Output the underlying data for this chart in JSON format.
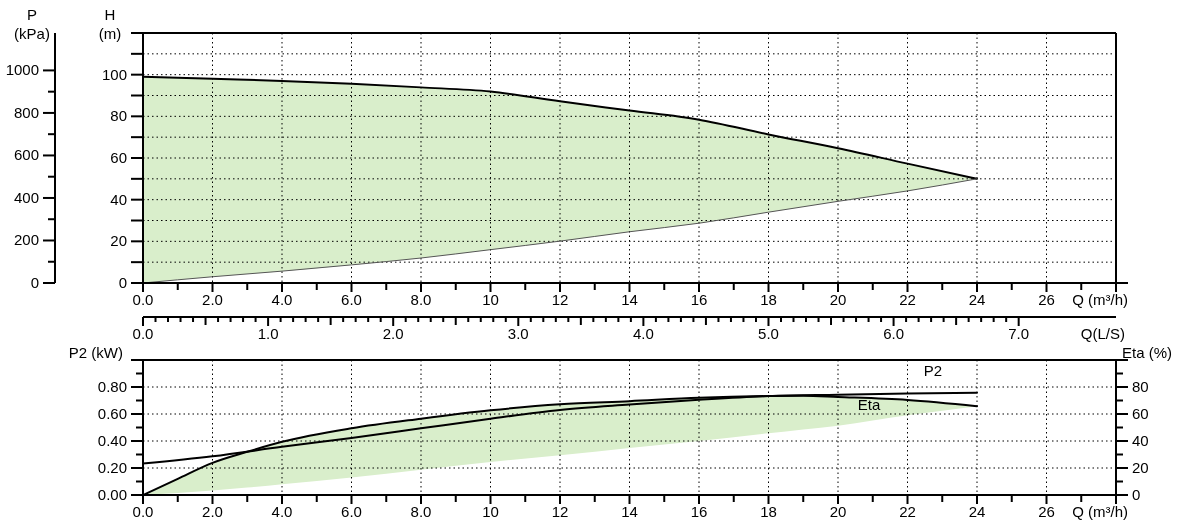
{
  "chart_data": [
    {
      "type": "line",
      "xlabel": "Q (m³/h)",
      "ylabel": "H (m)",
      "y2label": "P (kPa)",
      "x2label": "Q(L/S)",
      "grid": true,
      "xlim": [
        0,
        28
      ],
      "xticks": [
        {
          "value": 0,
          "label": "0.0"
        },
        {
          "value": 2,
          "label": "2.0"
        },
        {
          "value": 4,
          "label": "4.0"
        },
        {
          "value": 6,
          "label": "6.0"
        },
        {
          "value": 8,
          "label": "8.0"
        },
        10,
        12,
        14,
        16,
        18,
        20,
        22,
        24,
        26,
        {
          "value": 28,
          "label": null
        }
      ],
      "ylim": [
        0,
        120
      ],
      "yticks": [
        0,
        {
          "value": 10,
          "label": null
        },
        20,
        {
          "value": 30,
          "label": null
        },
        40,
        {
          "value": 50,
          "label": null
        },
        60,
        {
          "value": 70,
          "label": null
        },
        80,
        {
          "value": 90,
          "label": null
        },
        100,
        {
          "value": 110,
          "label": null
        },
        {
          "value": 120,
          "label": null
        }
      ],
      "y2lim": [
        0,
        1176
      ],
      "y2ticks": [
        0,
        200,
        400,
        600,
        800,
        1000
      ],
      "x2lim": [
        0,
        7.778
      ],
      "x2ticks": [
        {
          "value": 0,
          "label": "0.0"
        },
        {
          "value": 1,
          "label": "1.0"
        },
        {
          "value": 2,
          "label": "2.0"
        },
        {
          "value": 3,
          "label": "3.0"
        },
        {
          "value": 4,
          "label": "4.0"
        },
        {
          "value": 5,
          "label": "5.0"
        },
        {
          "value": 6,
          "label": "6.0"
        },
        {
          "value": 7,
          "label": "7.0"
        }
      ],
      "x": [
        0,
        2,
        4,
        6,
        8,
        10,
        12,
        14,
        16,
        18,
        20,
        22,
        24
      ],
      "series": [
        {
          "color": "#000000",
          "values": [
            99,
            98,
            97,
            95.6,
            93.9,
            91.9,
            87.2,
            82.8,
            78.4,
            71.3,
            64.7,
            57.3,
            50
          ],
          "lower": [
            0,
            3,
            5.7,
            8.7,
            12,
            16,
            20.1,
            24.6,
            28.7,
            34,
            39.2,
            44.2,
            50
          ],
          "upper": [
            99,
            98,
            97,
            95.6,
            93.9,
            91.9,
            87.2,
            82.8,
            78.4,
            71.3,
            64.7,
            57.3,
            50
          ]
        },
        {
          "color": "#555555",
          "values": [
            0,
            3,
            5.7,
            8.7,
            12,
            16,
            20.1,
            24.6,
            28.7,
            34,
            39.2,
            44.2,
            50
          ]
        }
      ]
    },
    {
      "type": "line",
      "xlabel": "Q (m³/h)",
      "ylabel": "P2 (kW)",
      "y2label": "Eta (%)",
      "grid": true,
      "xlim": [
        0,
        28
      ],
      "xticks": [
        {
          "value": 0,
          "label": "0.0"
        },
        {
          "value": 2,
          "label": "2.0"
        },
        {
          "value": 4,
          "label": "4.0"
        },
        {
          "value": 6,
          "label": "6.0"
        },
        {
          "value": 8,
          "label": "8.0"
        },
        10,
        12,
        14,
        16,
        18,
        20,
        22,
        24,
        26,
        {
          "value": 28,
          "label": null
        }
      ],
      "ylim": [
        0,
        1
      ],
      "yticks": [
        {
          "value": 0,
          "label": "0.00"
        },
        {
          "value": 0.2,
          "label": "0.20"
        },
        {
          "value": 0.4,
          "label": "0.40"
        },
        {
          "value": 0.6,
          "label": "0.60"
        },
        {
          "value": 0.8,
          "label": "0.80"
        },
        {
          "value": 1,
          "label": null
        }
      ],
      "y2lim": [
        0,
        100
      ],
      "y2ticks": [
        0,
        20,
        40,
        60,
        80,
        {
          "value": 100,
          "label": null
        }
      ],
      "series": [
        {
          "name": "P2",
          "color": "#000000",
          "x": [
            0,
            2,
            4,
            6,
            8,
            10,
            12,
            14,
            16,
            18,
            20,
            22,
            24
          ],
          "values": [
            0.233,
            0.287,
            0.357,
            0.423,
            0.494,
            0.565,
            0.63,
            0.67,
            0.705,
            0.733,
            0.743,
            0.752,
            0.757
          ]
        },
        {
          "name": "Eta",
          "color": "#000000",
          "axis": "y2",
          "x": [
            0,
            1,
            2,
            3,
            4,
            6,
            8,
            10,
            12,
            14,
            16,
            18,
            19,
            20,
            22,
            24
          ],
          "values": [
            0,
            12,
            23.8,
            32,
            39.4,
            49.4,
            56.5,
            62.7,
            67.2,
            69.5,
            72,
            73.3,
            73.5,
            72.6,
            70.4,
            65.8
          ],
          "lower": [
            0,
            1.5,
            3.4,
            5.5,
            8,
            13,
            18.7,
            24.4,
            29.5,
            34.9,
            40,
            45.7,
            48.5,
            51.3,
            59,
            65.8
          ],
          "upper": [
            0,
            12,
            23.8,
            32,
            39.4,
            49.4,
            56.5,
            62.7,
            67.2,
            69.5,
            72,
            73.3,
            73.5,
            72.6,
            70.4,
            65.8
          ]
        }
      ]
    }
  ]
}
